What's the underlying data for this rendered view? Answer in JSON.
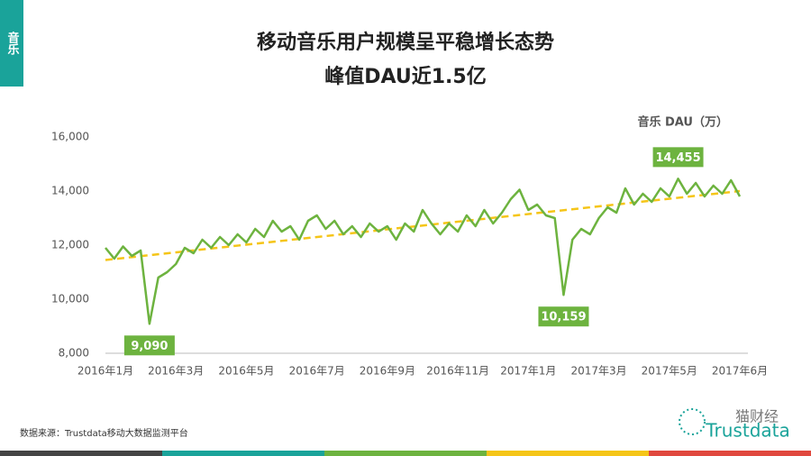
{
  "side_tab": "音乐",
  "footer": {
    "source": "数据来源：Trustdata移动大数据监测平台",
    "watermark": "猫财经",
    "logo": "Trustdata"
  },
  "chart_data": {
    "type": "line",
    "title": "移动音乐用户规模呈平稳增长态势",
    "subtitle": "峰值DAU近1.5亿",
    "y_label": "音乐 DAU（万）",
    "categories": [
      "2016年1月",
      null,
      null,
      null,
      null,
      null,
      null,
      null,
      "2016年3月",
      null,
      null,
      null,
      null,
      null,
      null,
      null,
      "2016年5月",
      null,
      null,
      null,
      null,
      null,
      null,
      null,
      "2016年7月",
      null,
      null,
      null,
      null,
      null,
      null,
      null,
      "2016年9月",
      null,
      null,
      null,
      null,
      null,
      null,
      null,
      "2016年11月",
      null,
      null,
      null,
      null,
      null,
      null,
      null,
      "2017年1月",
      null,
      null,
      null,
      null,
      null,
      null,
      null,
      "2017年3月",
      null,
      null,
      null,
      null,
      null,
      null,
      null,
      "2017年5月",
      null,
      null,
      null,
      null,
      null,
      null,
      null,
      "2017年6月"
    ],
    "values": [
      11900,
      11500,
      11950,
      11600,
      11800,
      9090,
      10800,
      11000,
      11300,
      11900,
      11700,
      12200,
      11900,
      12300,
      12000,
      12400,
      12100,
      12600,
      12300,
      12900,
      12500,
      12700,
      12200,
      12900,
      13100,
      12600,
      12900,
      12400,
      12700,
      12300,
      12800,
      12500,
      12700,
      12200,
      12800,
      12500,
      13300,
      12800,
      12400,
      12800,
      12500,
      13100,
      12700,
      13300,
      12800,
      13200,
      13700,
      14050,
      13300,
      13500,
      13100,
      13000,
      10159,
      12200,
      12600,
      12400,
      13000,
      13400,
      13200,
      14100,
      13500,
      13900,
      13600,
      14100,
      13800,
      14455,
      13900,
      14300,
      13800,
      14200,
      13900,
      14400,
      13800
    ],
    "value_labels": [
      null,
      null,
      null,
      null,
      null,
      "9,090",
      null,
      null,
      null,
      null,
      null,
      null,
      null,
      null,
      null,
      null,
      null,
      null,
      null,
      null,
      null,
      null,
      null,
      null,
      null,
      null,
      null,
      null,
      null,
      null,
      null,
      null,
      null,
      null,
      null,
      null,
      null,
      null,
      null,
      null,
      null,
      null,
      null,
      null,
      null,
      null,
      null,
      null,
      null,
      null,
      null,
      null,
      "10,159",
      null,
      null,
      null,
      null,
      null,
      null,
      null,
      null,
      null,
      null,
      null,
      null,
      "14,455",
      null,
      null,
      null,
      null,
      null,
      null,
      null
    ],
    "color": "#6db33f",
    "trend": {
      "color": "#f5c518",
      "values": [
        11450,
        14000
      ]
    },
    "ylim": [
      8000,
      16000
    ],
    "yticks": [
      {
        "value": 8000,
        "label": "8,000"
      },
      {
        "value": 10000,
        "label": "10,000"
      },
      {
        "value": 12000,
        "label": "12,000"
      },
      {
        "value": 14000,
        "label": "14,000"
      },
      {
        "value": 16000,
        "label": "16,000"
      }
    ],
    "grid": false
  }
}
